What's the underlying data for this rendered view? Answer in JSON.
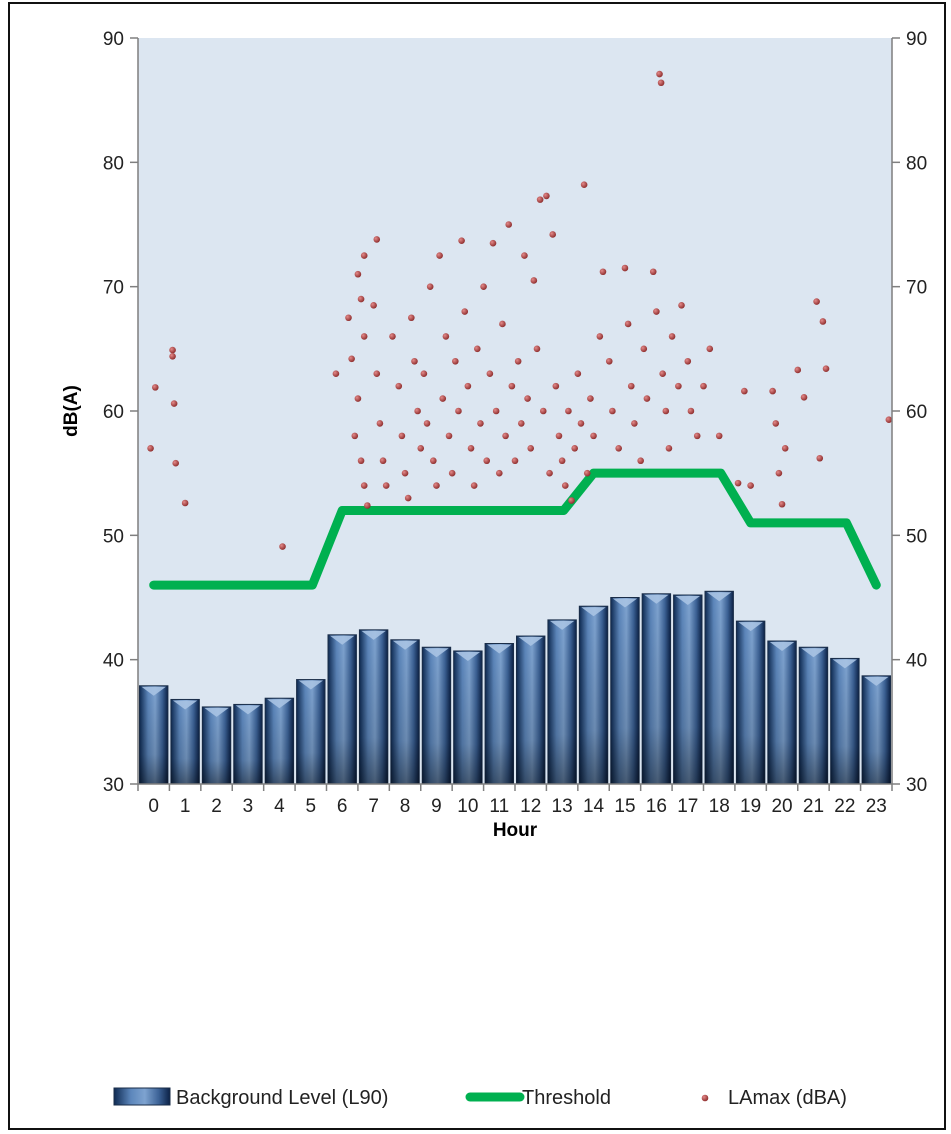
{
  "chart_data": {
    "type": "bar",
    "title": "",
    "xlabel": "Hour",
    "ylabel": "dB(A)",
    "ylim": [
      30,
      90
    ],
    "yticks": [
      30,
      40,
      50,
      60,
      70,
      80,
      90
    ],
    "secondary_y_axis": true,
    "grid": false,
    "legend_position": "bottom",
    "categories": [
      "0",
      "1",
      "2",
      "3",
      "4",
      "5",
      "6",
      "7",
      "8",
      "9",
      "10",
      "11",
      "12",
      "13",
      "14",
      "15",
      "16",
      "17",
      "18",
      "19",
      "20",
      "21",
      "22",
      "23"
    ],
    "series": [
      {
        "name": "Background Level (L90)",
        "kind": "bar",
        "color": "#3a5f8f",
        "values": [
          37.9,
          36.8,
          36.2,
          36.4,
          36.9,
          38.4,
          42.0,
          42.4,
          41.6,
          41.0,
          40.7,
          41.3,
          41.9,
          43.2,
          44.3,
          45.0,
          45.3,
          45.2,
          45.5,
          43.1,
          41.5,
          41.0,
          40.1,
          38.7
        ]
      },
      {
        "name": "Threshold",
        "kind": "line",
        "color": "#00b050",
        "values": [
          46,
          46,
          46,
          46,
          46,
          46,
          52,
          52,
          52,
          52,
          52,
          52,
          52,
          52,
          55,
          55,
          55,
          55,
          55,
          51,
          51,
          51,
          51,
          46
        ]
      },
      {
        "name": "LAmax (dBA)",
        "kind": "scatter",
        "color": "#b05050",
        "points": [
          [
            -0.1,
            57.0
          ],
          [
            0.05,
            61.9
          ],
          [
            0.6,
            64.9
          ],
          [
            0.6,
            64.4
          ],
          [
            0.65,
            60.6
          ],
          [
            0.7,
            55.8
          ],
          [
            1.0,
            52.6
          ],
          [
            4.1,
            49.1
          ],
          [
            5.8,
            63.0
          ],
          [
            6.2,
            67.5
          ],
          [
            6.3,
            64.2
          ],
          [
            6.5,
            71.0
          ],
          [
            6.6,
            69.0
          ],
          [
            6.7,
            66.0
          ],
          [
            6.4,
            58.0
          ],
          [
            6.6,
            56.0
          ],
          [
            6.7,
            54.0
          ],
          [
            6.8,
            52.4
          ],
          [
            6.5,
            61.0
          ],
          [
            6.7,
            72.5
          ],
          [
            7.0,
            68.5
          ],
          [
            7.1,
            63.0
          ],
          [
            7.2,
            59.0
          ],
          [
            7.3,
            56.0
          ],
          [
            7.4,
            54.0
          ],
          [
            7.1,
            73.8
          ],
          [
            7.6,
            66.0
          ],
          [
            7.8,
            62.0
          ],
          [
            7.9,
            58.0
          ],
          [
            8.0,
            55.0
          ],
          [
            8.1,
            53.0
          ],
          [
            8.2,
            67.5
          ],
          [
            8.3,
            64.0
          ],
          [
            8.4,
            60.0
          ],
          [
            8.5,
            57.0
          ],
          [
            8.6,
            63.0
          ],
          [
            8.7,
            59.0
          ],
          [
            8.8,
            70.0
          ],
          [
            8.9,
            56.0
          ],
          [
            9.0,
            54.0
          ],
          [
            9.1,
            72.5
          ],
          [
            9.2,
            61.0
          ],
          [
            9.3,
            66.0
          ],
          [
            9.4,
            58.0
          ],
          [
            9.5,
            55.0
          ],
          [
            9.6,
            64.0
          ],
          [
            9.7,
            60.0
          ],
          [
            9.8,
            73.7
          ],
          [
            9.9,
            68.0
          ],
          [
            10.0,
            62.0
          ],
          [
            10.1,
            57.0
          ],
          [
            10.2,
            54.0
          ],
          [
            10.3,
            65.0
          ],
          [
            10.4,
            59.0
          ],
          [
            10.5,
            70.0
          ],
          [
            10.6,
            56.0
          ],
          [
            10.7,
            63.0
          ],
          [
            10.8,
            73.5
          ],
          [
            10.9,
            60.0
          ],
          [
            11.0,
            55.0
          ],
          [
            11.1,
            67.0
          ],
          [
            11.2,
            58.0
          ],
          [
            11.3,
            75.0
          ],
          [
            11.4,
            62.0
          ],
          [
            11.5,
            56.0
          ],
          [
            11.6,
            64.0
          ],
          [
            11.7,
            59.0
          ],
          [
            11.8,
            72.5
          ],
          [
            11.9,
            61.0
          ],
          [
            12.0,
            57.0
          ],
          [
            12.1,
            70.5
          ],
          [
            12.2,
            65.0
          ],
          [
            12.3,
            77.0
          ],
          [
            12.4,
            60.0
          ],
          [
            12.5,
            77.3
          ],
          [
            12.6,
            55.0
          ],
          [
            12.7,
            74.2
          ],
          [
            12.8,
            62.0
          ],
          [
            12.9,
            58.0
          ],
          [
            13.0,
            56.0
          ],
          [
            13.1,
            54.0
          ],
          [
            13.2,
            60.0
          ],
          [
            13.3,
            52.8
          ],
          [
            13.4,
            57.0
          ],
          [
            13.5,
            63.0
          ],
          [
            13.6,
            59.0
          ],
          [
            13.7,
            78.2
          ],
          [
            13.8,
            55.0
          ],
          [
            13.9,
            61.0
          ],
          [
            14.0,
            58.0
          ],
          [
            14.2,
            66.0
          ],
          [
            14.3,
            71.2
          ],
          [
            14.5,
            64.0
          ],
          [
            14.6,
            60.0
          ],
          [
            14.8,
            57.0
          ],
          [
            15.0,
            71.5
          ],
          [
            15.1,
            67.0
          ],
          [
            15.2,
            62.0
          ],
          [
            15.3,
            59.0
          ],
          [
            15.5,
            56.0
          ],
          [
            15.6,
            65.0
          ],
          [
            15.7,
            61.0
          ],
          [
            15.9,
            71.2
          ],
          [
            16.0,
            68.0
          ],
          [
            16.1,
            87.1
          ],
          [
            16.15,
            86.4
          ],
          [
            16.2,
            63.0
          ],
          [
            16.3,
            60.0
          ],
          [
            16.4,
            57.0
          ],
          [
            16.5,
            66.0
          ],
          [
            16.7,
            62.0
          ],
          [
            16.8,
            68.5
          ],
          [
            17.0,
            64.0
          ],
          [
            17.1,
            60.0
          ],
          [
            17.3,
            58.0
          ],
          [
            17.5,
            62.0
          ],
          [
            17.7,
            65.0
          ],
          [
            18.0,
            58.0
          ],
          [
            18.6,
            54.2
          ],
          [
            18.8,
            61.6
          ],
          [
            19.0,
            54.0
          ],
          [
            19.7,
            61.6
          ],
          [
            19.8,
            59.0
          ],
          [
            19.9,
            55.0
          ],
          [
            20.0,
            52.5
          ],
          [
            20.1,
            57.0
          ],
          [
            20.5,
            63.3
          ],
          [
            20.7,
            61.1
          ],
          [
            21.1,
            68.8
          ],
          [
            21.2,
            56.2
          ],
          [
            21.3,
            67.2
          ],
          [
            21.4,
            63.4
          ],
          [
            23.4,
            59.3
          ]
        ]
      }
    ]
  }
}
